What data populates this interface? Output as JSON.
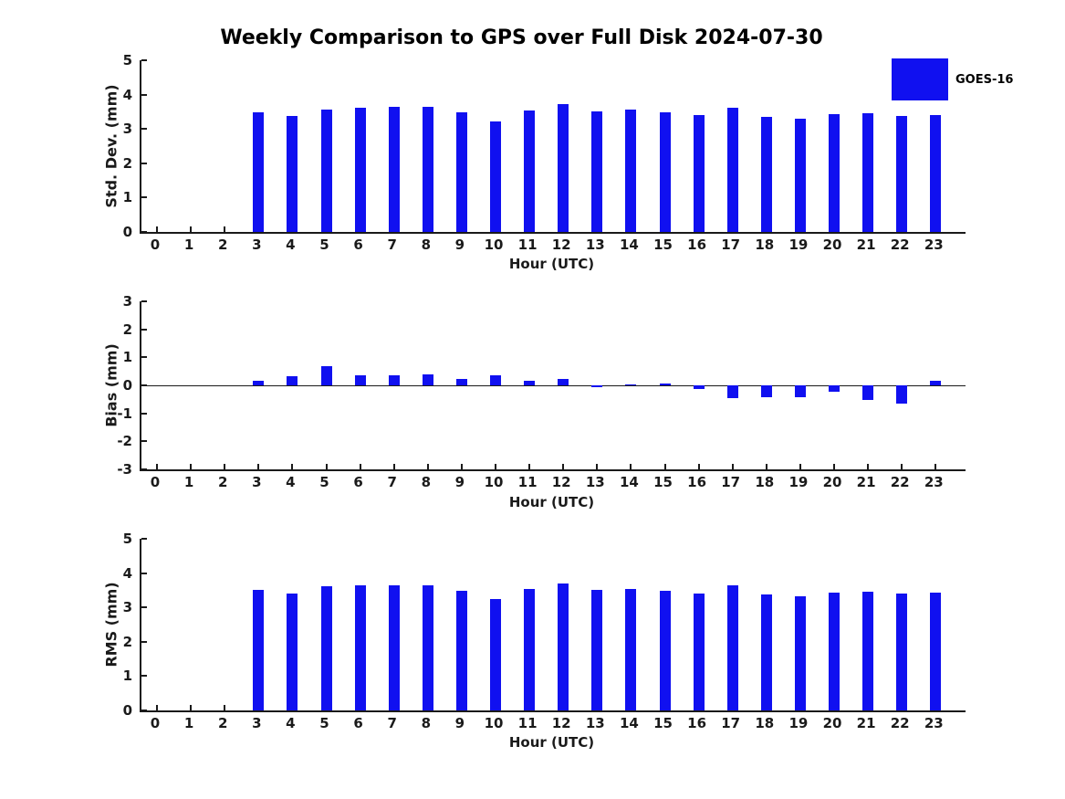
{
  "title": "Weekly Comparison to GPS over Full Disk 2024-07-30",
  "legend": {
    "label": "GOES-16",
    "color": "#1010f0",
    "position": "top-right"
  },
  "colors": {
    "bar": "#1010f0",
    "text": "#1a1a1a",
    "axis": "#1a1a1a",
    "background": "#ffffff"
  },
  "chart_data": [
    {
      "type": "bar",
      "name": "std-dev-vs-hour",
      "series_name": "GOES-16",
      "ylabel": "Std. Dev. (mm)",
      "xlabel": "Hour (UTC)",
      "categories": [
        0,
        1,
        2,
        3,
        4,
        5,
        6,
        7,
        8,
        9,
        10,
        11,
        12,
        13,
        14,
        15,
        16,
        17,
        18,
        19,
        20,
        21,
        22,
        23
      ],
      "values": [
        null,
        null,
        null,
        3.48,
        3.38,
        3.57,
        3.62,
        3.64,
        3.65,
        3.48,
        3.22,
        3.53,
        3.71,
        3.52,
        3.55,
        3.48,
        3.4,
        3.62,
        3.35,
        3.3,
        3.44,
        3.45,
        3.38,
        3.4
      ],
      "ylim": [
        0,
        5
      ],
      "yticks": [
        5,
        4,
        3,
        2,
        1,
        0
      ],
      "grid": false,
      "legend_position": "top-right"
    },
    {
      "type": "bar",
      "name": "bias-vs-hour",
      "series_name": "GOES-16",
      "ylabel": "Bias (mm)",
      "xlabel": "Hour (UTC)",
      "categories": [
        0,
        1,
        2,
        3,
        4,
        5,
        6,
        7,
        8,
        9,
        10,
        11,
        12,
        13,
        14,
        15,
        16,
        17,
        18,
        19,
        20,
        21,
        22,
        23
      ],
      "values": [
        null,
        null,
        null,
        0.17,
        0.33,
        0.67,
        0.36,
        0.35,
        0.39,
        0.24,
        0.36,
        0.17,
        0.24,
        -0.05,
        0.02,
        0.07,
        -0.14,
        -0.45,
        -0.44,
        -0.44,
        -0.24,
        -0.52,
        -0.66,
        0.15
      ],
      "ylim": [
        -3,
        3
      ],
      "yticks": [
        3,
        2,
        1,
        0,
        -1,
        -2,
        -3
      ],
      "zero_line": true,
      "grid": false
    },
    {
      "type": "bar",
      "name": "rms-vs-hour",
      "series_name": "GOES-16",
      "ylabel": "RMS (mm)",
      "xlabel": "Hour (UTC)",
      "categories": [
        0,
        1,
        2,
        3,
        4,
        5,
        6,
        7,
        8,
        9,
        10,
        11,
        12,
        13,
        14,
        15,
        16,
        17,
        18,
        19,
        20,
        21,
        22,
        23
      ],
      "values": [
        null,
        null,
        null,
        3.5,
        3.4,
        3.61,
        3.64,
        3.65,
        3.65,
        3.49,
        3.25,
        3.54,
        3.69,
        3.51,
        3.53,
        3.48,
        3.4,
        3.64,
        3.38,
        3.31,
        3.42,
        3.45,
        3.41,
        3.42
      ],
      "ylim": [
        0,
        5
      ],
      "yticks": [
        5,
        4,
        3,
        2,
        1,
        0
      ],
      "grid": false
    }
  ]
}
